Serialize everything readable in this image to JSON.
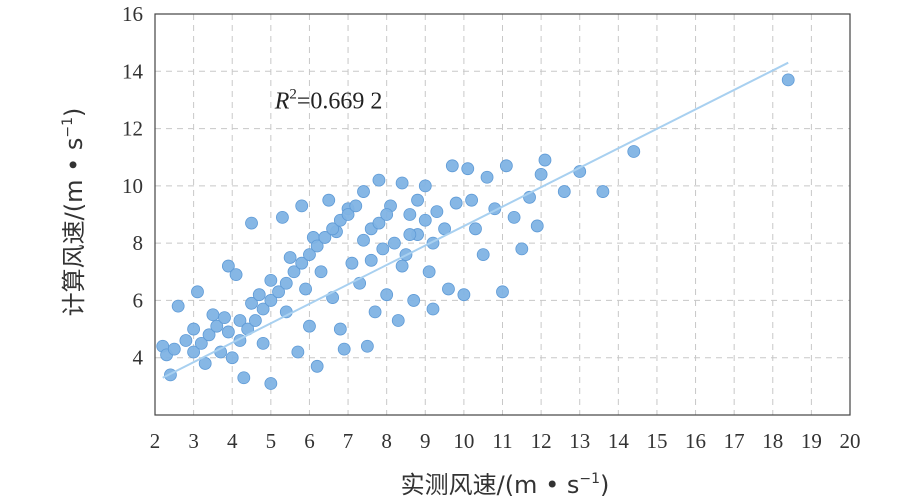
{
  "chart_data": {
    "type": "scatter",
    "title": "",
    "xlabel_main": "实测风速/(m • s",
    "xlabel_sup": "−1",
    "xlabel_end": ")",
    "ylabel_main": "计算风速/(m • s",
    "ylabel_sup": "−1",
    "ylabel_end": ")",
    "xlim": [
      2,
      20
    ],
    "ylim": [
      2,
      16
    ],
    "xticks": [
      "2",
      "3",
      "4",
      "5",
      "6",
      "7",
      "8",
      "9",
      "10",
      "11",
      "12",
      "13",
      "14",
      "15",
      "16",
      "17",
      "18",
      "19",
      "20"
    ],
    "yticks": [
      "4",
      "6",
      "8",
      "10",
      "12",
      "14",
      "16"
    ],
    "grid": true,
    "grid_style": "dashed",
    "annotation": {
      "var": "R",
      "sup": "2",
      "text": "=0.669 2",
      "x": 5.1,
      "y": 12.7
    },
    "fit_line": {
      "x": [
        2.2,
        18.4
      ],
      "y": [
        3.3,
        14.3
      ]
    },
    "marker_color": "#7fb3e4",
    "marker_edge": "#5e9ad6",
    "line_color": "#a8d0f0",
    "series": [
      {
        "points": [
          [
            2.2,
            4.4
          ],
          [
            2.3,
            4.1
          ],
          [
            2.4,
            3.4
          ],
          [
            2.6,
            5.8
          ],
          [
            2.5,
            4.3
          ],
          [
            2.8,
            4.6
          ],
          [
            3.0,
            5.0
          ],
          [
            3.1,
            6.3
          ],
          [
            3.3,
            3.8
          ],
          [
            3.5,
            5.5
          ],
          [
            3.7,
            4.2
          ],
          [
            3.9,
            7.2
          ],
          [
            3.9,
            4.9
          ],
          [
            4.1,
            6.9
          ],
          [
            4.2,
            5.3
          ],
          [
            4.3,
            3.3
          ],
          [
            4.5,
            5.9
          ],
          [
            4.5,
            8.7
          ],
          [
            4.7,
            6.2
          ],
          [
            4.8,
            4.5
          ],
          [
            5.0,
            3.1
          ],
          [
            5.0,
            6.7
          ],
          [
            5.3,
            8.9
          ],
          [
            5.4,
            5.6
          ],
          [
            5.5,
            7.5
          ],
          [
            5.7,
            4.2
          ],
          [
            5.8,
            9.3
          ],
          [
            5.9,
            6.4
          ],
          [
            6.0,
            5.1
          ],
          [
            6.1,
            8.2
          ],
          [
            6.2,
            3.7
          ],
          [
            6.3,
            7.0
          ],
          [
            6.5,
            9.5
          ],
          [
            6.6,
            6.1
          ],
          [
            6.7,
            8.4
          ],
          [
            6.8,
            5.0
          ],
          [
            6.9,
            4.3
          ],
          [
            7.0,
            9.2
          ],
          [
            7.1,
            7.3
          ],
          [
            7.3,
            6.6
          ],
          [
            7.4,
            9.8
          ],
          [
            7.5,
            4.4
          ],
          [
            7.6,
            8.5
          ],
          [
            7.7,
            5.6
          ],
          [
            7.8,
            10.2
          ],
          [
            7.9,
            7.8
          ],
          [
            8.0,
            6.2
          ],
          [
            8.1,
            9.3
          ],
          [
            8.3,
            5.3
          ],
          [
            8.4,
            10.1
          ],
          [
            8.5,
            7.6
          ],
          [
            8.6,
            9.0
          ],
          [
            8.7,
            6.0
          ],
          [
            8.8,
            8.3
          ],
          [
            9.0,
            10.0
          ],
          [
            9.1,
            7.0
          ],
          [
            9.2,
            5.7
          ],
          [
            9.3,
            9.1
          ],
          [
            9.5,
            8.5
          ],
          [
            9.6,
            6.4
          ],
          [
            9.7,
            10.7
          ],
          [
            9.8,
            9.4
          ],
          [
            10.0,
            6.2
          ],
          [
            10.1,
            10.6
          ],
          [
            10.2,
            9.5
          ],
          [
            10.3,
            8.5
          ],
          [
            10.5,
            7.6
          ],
          [
            10.6,
            10.3
          ],
          [
            10.8,
            9.2
          ],
          [
            11.0,
            6.3
          ],
          [
            11.1,
            10.7
          ],
          [
            11.3,
            8.9
          ],
          [
            11.5,
            7.8
          ],
          [
            11.7,
            9.6
          ],
          [
            11.9,
            8.6
          ],
          [
            12.0,
            10.4
          ],
          [
            12.1,
            10.9
          ],
          [
            12.6,
            9.8
          ],
          [
            13.0,
            10.5
          ],
          [
            13.6,
            9.8
          ],
          [
            14.4,
            11.2
          ],
          [
            18.4,
            13.7
          ],
          [
            3.0,
            4.2
          ],
          [
            3.2,
            4.5
          ],
          [
            3.4,
            4.8
          ],
          [
            3.6,
            5.1
          ],
          [
            3.8,
            5.4
          ],
          [
            4.0,
            4.0
          ],
          [
            4.2,
            4.6
          ],
          [
            4.4,
            5.0
          ],
          [
            4.6,
            5.3
          ],
          [
            4.8,
            5.7
          ],
          [
            5.0,
            6.0
          ],
          [
            5.2,
            6.3
          ],
          [
            5.4,
            6.6
          ],
          [
            5.6,
            7.0
          ],
          [
            5.8,
            7.3
          ],
          [
            6.0,
            7.6
          ],
          [
            6.2,
            7.9
          ],
          [
            6.4,
            8.2
          ],
          [
            6.6,
            8.5
          ],
          [
            6.8,
            8.8
          ],
          [
            7.0,
            9.0
          ],
          [
            7.2,
            9.3
          ],
          [
            7.4,
            8.1
          ],
          [
            7.6,
            7.4
          ],
          [
            7.8,
            8.7
          ],
          [
            8.0,
            9.0
          ],
          [
            8.2,
            8.0
          ],
          [
            8.4,
            7.2
          ],
          [
            8.6,
            8.3
          ],
          [
            8.8,
            9.5
          ],
          [
            9.0,
            8.8
          ],
          [
            9.2,
            8.0
          ]
        ]
      }
    ]
  }
}
